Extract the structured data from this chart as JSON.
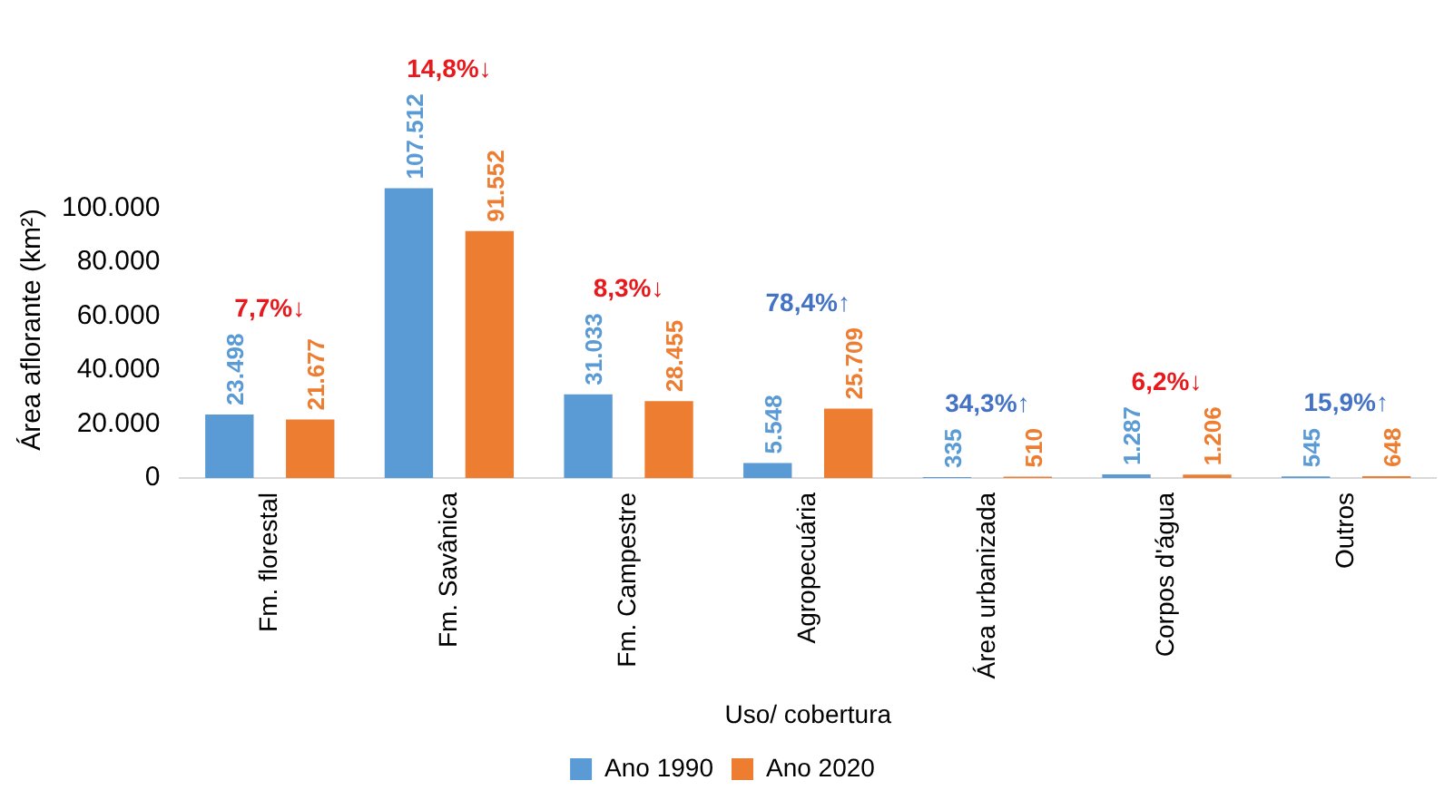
{
  "chart_data": {
    "type": "bar",
    "xlabel": "Uso/ cobertura",
    "ylabel": "Área aflorante (km²)",
    "categories": [
      "Fm. florestal",
      "Fm. Savânica",
      "Fm. Campestre",
      "Agropecuária",
      "Área urbanizada",
      "Corpos d'água",
      "Outros"
    ],
    "series": [
      {
        "name": "Ano 1990",
        "color": "#5b9bd5",
        "values": [
          23498,
          107512,
          31033,
          5548,
          335,
          1287,
          545
        ],
        "value_labels": [
          "23.498",
          "107.512",
          "31.033",
          "5.548",
          "335",
          "1.287",
          "545"
        ]
      },
      {
        "name": "Ano 2020",
        "color": "#ed7d31",
        "values": [
          21677,
          91552,
          28455,
          25709,
          510,
          1206,
          648
        ],
        "value_labels": [
          "21.677",
          "91.552",
          "28.455",
          "25.709",
          "510",
          "1.206",
          "648"
        ]
      }
    ],
    "ylim": [
      0,
      110000
    ],
    "yticks": [
      {
        "value": 0,
        "label": "0"
      },
      {
        "value": 20000,
        "label": "20.000"
      },
      {
        "value": 40000,
        "label": "40.000"
      },
      {
        "value": 60000,
        "label": "60.000"
      },
      {
        "value": 80000,
        "label": "80.000"
      },
      {
        "value": 100000,
        "label": "100.000"
      }
    ],
    "annotations": [
      "7,7%↓",
      "14,8%↓",
      "8,3%↓",
      "78,4%↑",
      "34,3%↑",
      "6,2%↓",
      "15,9%↑"
    ],
    "grid": false,
    "legend": "bottom"
  }
}
